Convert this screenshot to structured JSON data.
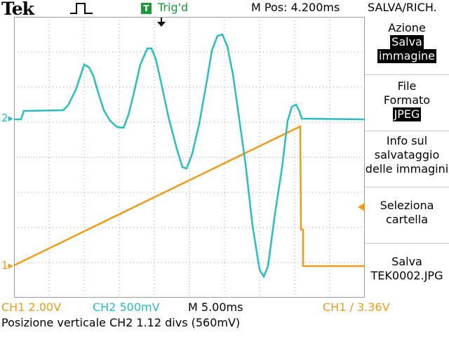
{
  "header": {
    "brand": "Tek",
    "trigger_box": "T",
    "trigger_status": "Trig'd",
    "m_pos": "M Pos: 4.200ms",
    "menu_title": "SALVA/RICH."
  },
  "sidebar": {
    "azione_label": "Azione",
    "azione_value_1": "Salva",
    "azione_value_2": "immagine",
    "file_formato_1": "File",
    "file_formato_2": "Formato",
    "file_formato_value": "JPEG",
    "info_1": "Info sul",
    "info_2": "salvataggio",
    "info_3": "delle immagini",
    "seleziona_1": "Seleziona",
    "seleziona_2": "cartella",
    "salva_1": "Salva",
    "salva_2": "TEK0002.JPG"
  },
  "status": {
    "ch1": "CH1  2.00V",
    "ch2": "CH2  500mV",
    "timebase": "M 5.00ms",
    "trigger": "CH1 ∕ 3.36V",
    "message": "Posizione verticale CH2 1.12 divs (560mV)"
  },
  "markers": {
    "ch1": "1",
    "ch2": "2"
  },
  "colors": {
    "ch1": "#ef9b1a",
    "ch2": "#2abcc0",
    "trigger": "#1a9a3a",
    "grid": "#9a9a9a"
  },
  "icons": [
    "pulse-icon",
    "trigger-position-arrow-icon",
    "menu-select-arrow-icon"
  ]
}
